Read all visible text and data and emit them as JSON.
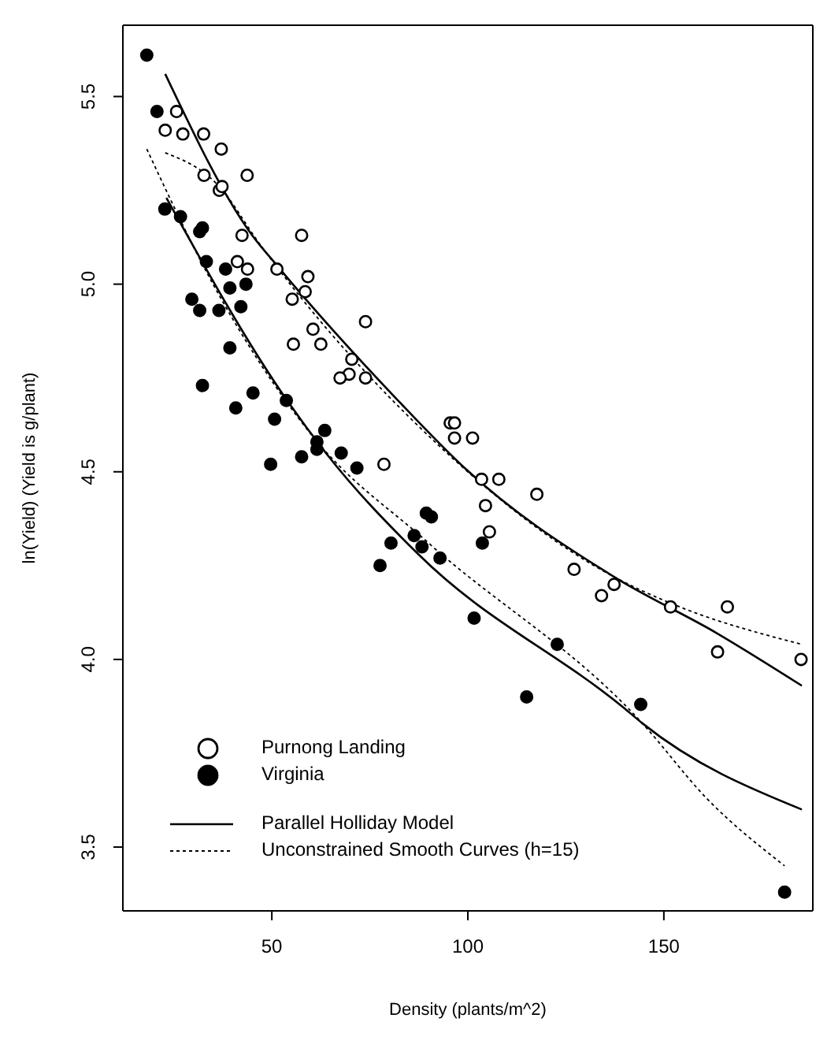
{
  "chart_data": {
    "type": "scatter",
    "xlabel": "Density (plants/m^2)",
    "ylabel": "ln(Yield) (Yield is g/plant)",
    "xlim": [
      12,
      188
    ],
    "ylim": [
      3.33,
      5.69
    ],
    "xticks": [
      50,
      100,
      150
    ],
    "yticks": [
      3.5,
      {
        "value": 4,
        "label": "4.0"
      },
      4.5,
      {
        "value": 5,
        "label": "5.0"
      },
      5.5
    ],
    "grid": false,
    "legend": "bottom left",
    "series": [
      {
        "name": "Purnong Landing",
        "marker": "circle",
        "color": "#ffffff",
        "x": [
          25.7,
          22.8,
          27.3,
          32.6,
          37.1,
          32.7,
          43.7,
          36.6,
          37.3,
          57.6,
          42.4,
          41.2,
          43.8,
          51.3,
          59.2,
          58.5,
          55.2,
          60.5,
          62.5,
          55.5,
          73.9,
          70.4,
          69.7,
          67.4,
          73.9,
          78.6,
          95.5,
          96.6,
          96.6,
          101.2,
          103.5,
          107.9,
          117.6,
          104.5,
          105.5,
          127.1,
          137.3,
          134.1,
          151.7,
          166.2,
          163.7,
          185
        ],
        "values": [
          5.46,
          5.41,
          5.4,
          5.4,
          5.36,
          5.29,
          5.29,
          5.25,
          5.26,
          5.13,
          5.13,
          5.06,
          5.04,
          5.04,
          5.02,
          4.98,
          4.96,
          4.88,
          4.84,
          4.84,
          4.9,
          4.8,
          4.76,
          4.75,
          4.75,
          4.52,
          4.63,
          4.63,
          4.59,
          4.59,
          4.48,
          4.48,
          4.44,
          4.41,
          4.34,
          4.24,
          4.2,
          4.17,
          4.14,
          4.14,
          4.02,
          4.0
        ]
      },
      {
        "name": "Virginia",
        "marker": "circle",
        "color": "#000000",
        "x": [
          18.1,
          20.7,
          22.7,
          26.7,
          31.6,
          32.3,
          33.3,
          38.2,
          39.3,
          43.4,
          29.6,
          31.6,
          36.5,
          42.1,
          39.3,
          32.3,
          45.2,
          40.8,
          53.7,
          50.7,
          63.5,
          61.5,
          61.5,
          67.7,
          71.7,
          57.6,
          49.7,
          89.4,
          90.7,
          86.3,
          80.4,
          88.3,
          92.9,
          77.6,
          103.7,
          101.6,
          122.8,
          115,
          144.1,
          180.8
        ],
        "values": [
          5.61,
          5.46,
          5.2,
          5.18,
          5.14,
          5.15,
          5.06,
          5.04,
          4.99,
          5.0,
          4.96,
          4.93,
          4.93,
          4.94,
          4.83,
          4.73,
          4.71,
          4.67,
          4.69,
          4.64,
          4.61,
          4.58,
          4.56,
          4.55,
          4.51,
          4.54,
          4.52,
          4.39,
          4.38,
          4.33,
          4.31,
          4.3,
          4.27,
          4.25,
          4.31,
          4.11,
          4.04,
          3.9,
          3.88,
          3.38
        ]
      },
      {
        "name": "Parallel Holliday Model",
        "type": "line",
        "line_style": "solid",
        "color": "#000000",
        "x": [
          22.8,
          45,
          51.3,
          82.2,
          99.2,
          137.3,
          163.5,
          185.2
        ],
        "values": [
          5.56,
          5.13,
          5.05,
          4.69,
          4.51,
          4.22,
          4.07,
          3.93
        ]
      },
      {
        "type": "line",
        "line_style": "solid",
        "color": "#000000",
        "x": [
          23.1,
          53.9,
          63.8,
          87.4,
          139.9,
          144.5,
          185.2
        ],
        "values": [
          5.23,
          4.69,
          4.55,
          4.28,
          3.87,
          3.83,
          3.6
        ]
      },
      {
        "name": "Unconstrained Smooth Curves (h=15)",
        "type": "line",
        "line_style": "dotted",
        "color": "#000000",
        "x": [
          22.8,
          36.6,
          46.7,
          92.6,
          137.3,
          151.7,
          185.2
        ],
        "values": [
          5.35,
          5.26,
          5.11,
          4.57,
          4.22,
          4.15,
          4.04
        ]
      },
      {
        "type": "line",
        "line_style": "dotted",
        "color": "#000000",
        "x": [
          18.1,
          35,
          60,
          90,
          144.5,
          160.9,
          180.8
        ],
        "values": [
          5.36,
          5.0,
          4.6,
          4.31,
          3.83,
          3.63,
          3.45
        ]
      }
    ]
  }
}
